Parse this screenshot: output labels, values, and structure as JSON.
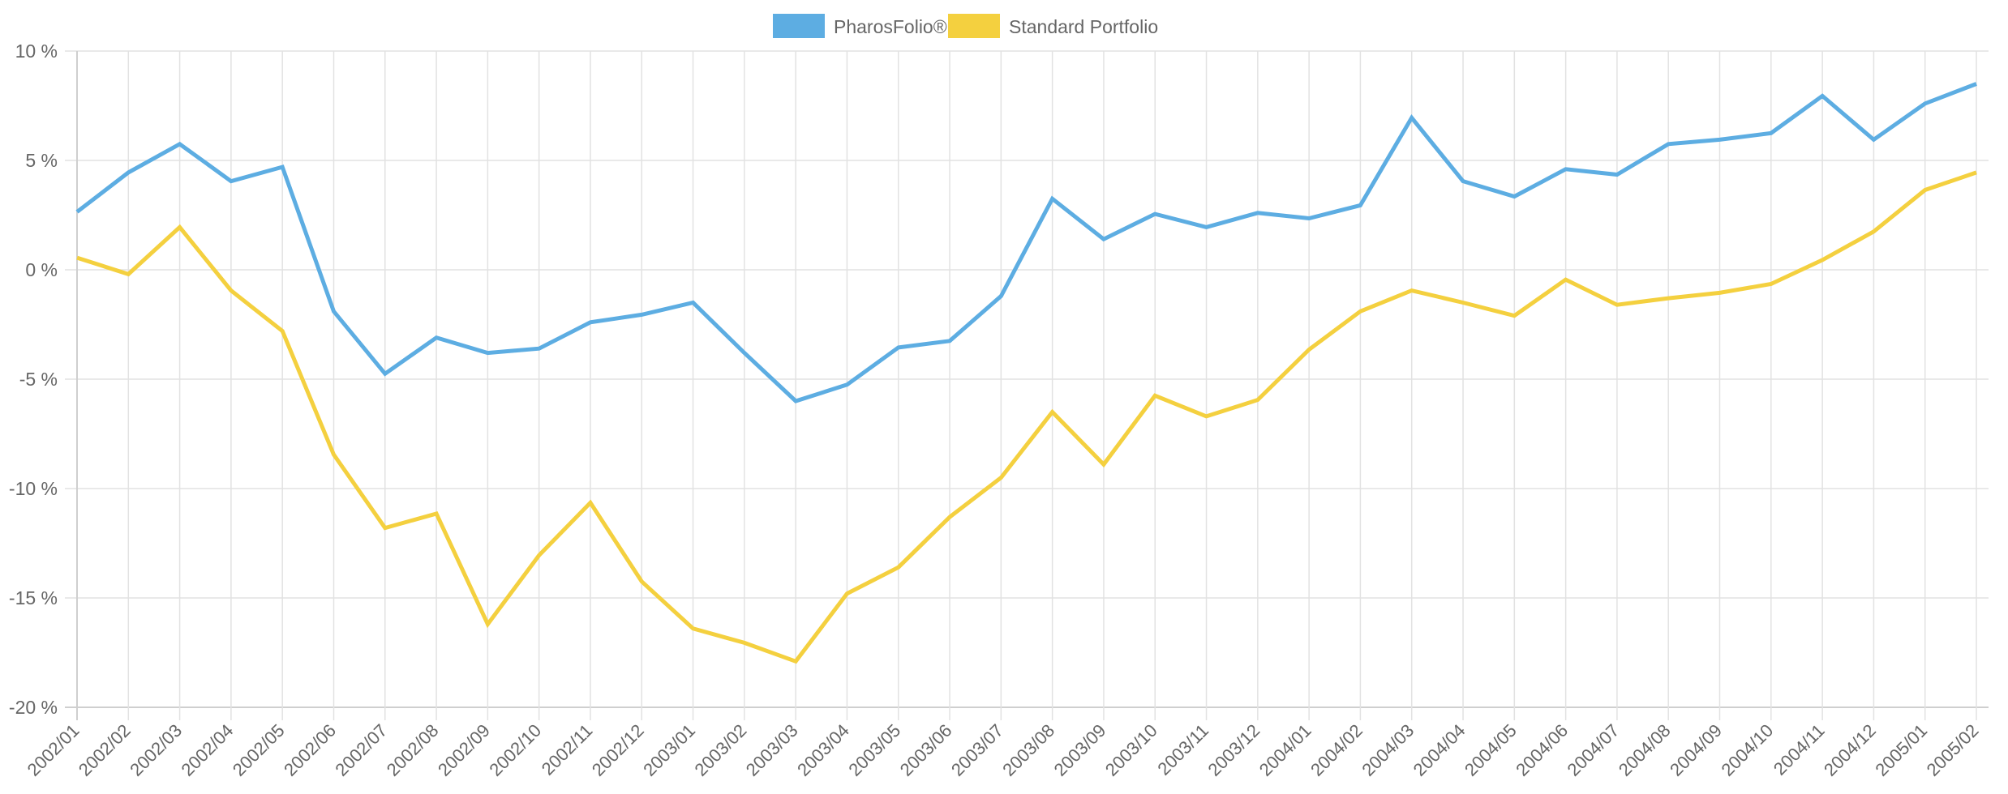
{
  "chart_data": {
    "type": "line",
    "title": "",
    "xlabel": "",
    "ylabel": "",
    "ylim": [
      -20,
      10
    ],
    "yticks": [
      10,
      5,
      0,
      -5,
      -10,
      -15,
      -20
    ],
    "ytick_suffix": " %",
    "grid": true,
    "legend_position": "top",
    "categories": [
      "2002/01",
      "2002/02",
      "2002/03",
      "2002/04",
      "2002/05",
      "2002/06",
      "2002/07",
      "2002/08",
      "2002/09",
      "2002/10",
      "2002/11",
      "2002/12",
      "2003/01",
      "2003/02",
      "2003/03",
      "2003/04",
      "2003/05",
      "2003/06",
      "2003/07",
      "2003/08",
      "2003/09",
      "2003/10",
      "2003/11",
      "2003/12",
      "2004/01",
      "2004/02",
      "2004/03",
      "2004/04",
      "2004/05",
      "2004/06",
      "2004/07",
      "2004/08",
      "2004/09",
      "2004/10",
      "2004/11",
      "2004/12",
      "2005/01",
      "2005/02"
    ],
    "series": [
      {
        "name": "PharosFolio® 1",
        "color": "#5dade2",
        "values": [
          2.65,
          4.45,
          5.75,
          4.05,
          4.7,
          -1.9,
          -4.75,
          -3.1,
          -3.8,
          -3.6,
          -2.4,
          -2.05,
          -1.5,
          -3.8,
          -6.0,
          -5.25,
          -3.55,
          -3.25,
          -1.2,
          3.25,
          1.4,
          2.55,
          1.95,
          2.6,
          2.35,
          2.95,
          6.95,
          4.05,
          3.35,
          4.6,
          4.35,
          5.75,
          5.95,
          6.25,
          7.95,
          5.95,
          7.6,
          8.5
        ]
      },
      {
        "name": "Standard Portfolio",
        "color": "#f4d03f",
        "values": [
          0.55,
          -0.2,
          1.95,
          -0.95,
          -2.8,
          -8.45,
          -11.8,
          -11.15,
          -16.2,
          -13.05,
          -10.65,
          -14.25,
          -16.4,
          -17.05,
          -17.9,
          -14.8,
          -13.6,
          -11.3,
          -9.5,
          -6.5,
          -8.9,
          -5.75,
          -6.7,
          -5.95,
          -3.65,
          -1.9,
          -0.95,
          -1.5,
          -2.1,
          -0.45,
          -1.6,
          -1.3,
          -1.05,
          -0.65,
          0.45,
          1.75,
          3.65,
          4.45
        ]
      }
    ]
  }
}
